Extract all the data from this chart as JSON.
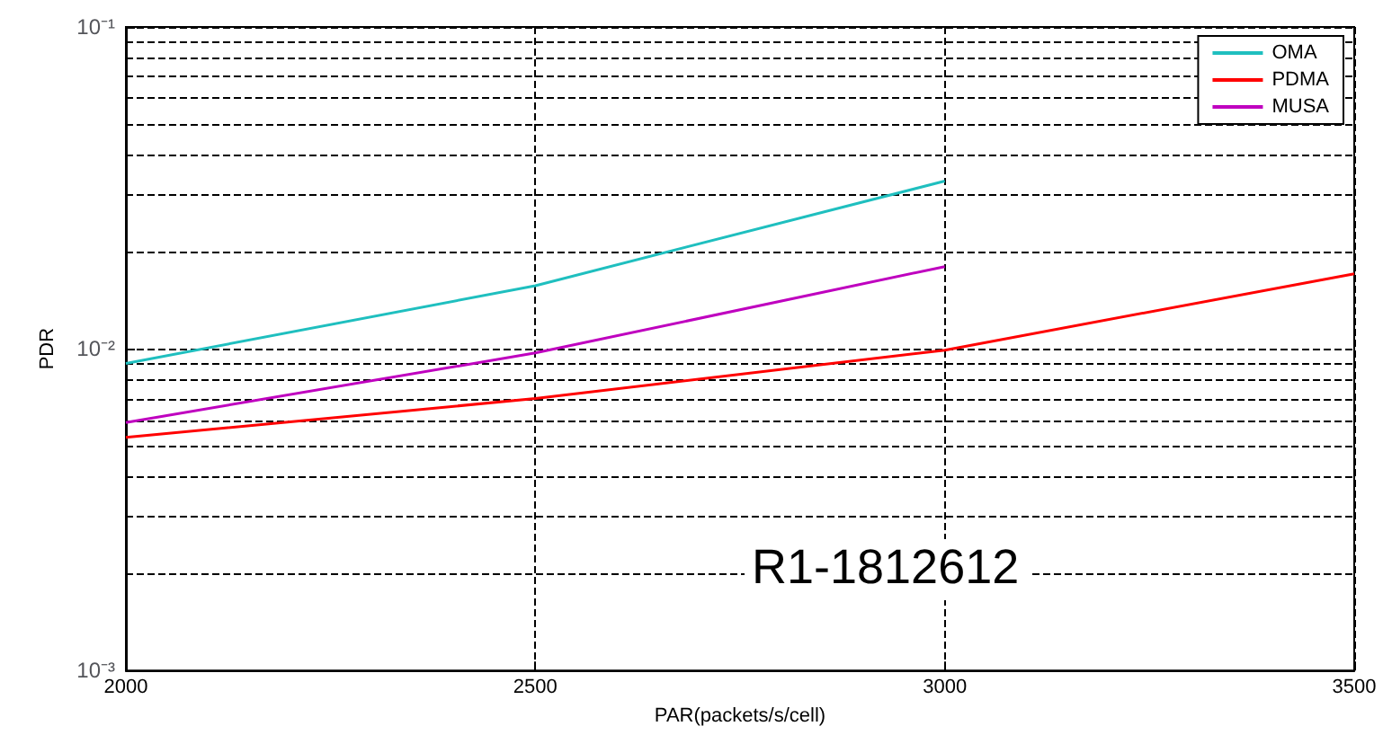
{
  "chart_data": {
    "type": "line",
    "xlabel": "PAR(packets/s/cell)",
    "ylabel": "PDR",
    "x": [
      2000,
      2500,
      3000,
      3500
    ],
    "series": [
      {
        "name": "OMA",
        "color": "#1fbfbf",
        "values": [
          0.009,
          0.0157,
          0.0332,
          null
        ]
      },
      {
        "name": "PDMA",
        "color": "#ff0000",
        "values": [
          0.0053,
          0.007,
          0.0099,
          0.0171
        ]
      },
      {
        "name": "MUSA",
        "color": "#bf00bf",
        "values": [
          0.0059,
          0.0097,
          0.018,
          null
        ]
      }
    ],
    "log": "y",
    "xlim": [
      2000,
      3500
    ],
    "xticks": [
      2000,
      2500,
      3000,
      3500
    ],
    "ylim": [
      0.001,
      0.1
    ],
    "yticks": [
      {
        "value": 0.001,
        "label": "10⁻³"
      },
      {
        "value": 0.01,
        "label": "10⁻²"
      },
      {
        "value": 0.1,
        "label": "10⁻¹"
      }
    ],
    "grid": true,
    "legend": "top right",
    "marker": "none",
    "line_style": "solid",
    "annotations": [
      "R1-1812612"
    ]
  }
}
